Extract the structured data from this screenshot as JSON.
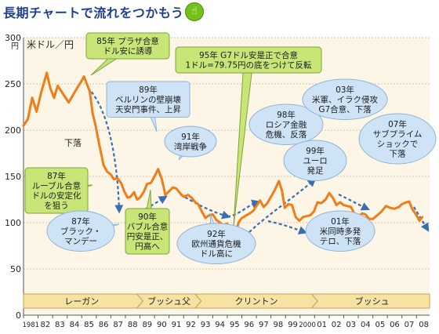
{
  "page": {
    "title": "長期チャートで流れをつかもう",
    "icon": "pointing-hand-icon"
  },
  "colors": {
    "line": "#ef7d1a",
    "arrow": "#3a6db0",
    "callout_green": "#c8e678",
    "callout_blue": "#cfe3f7",
    "era_band": "#f6e3a4",
    "plot_bg": "#fdf6e6",
    "title": "#1d3f8f"
  },
  "chart_data": {
    "type": "line",
    "unit_label": "米ドル／円",
    "ylabel": "円",
    "ylim": [
      0,
      300
    ],
    "yticks": [
      0,
      50,
      100,
      150,
      200,
      250,
      300
    ],
    "xlim": [
      1981,
      2008.9
    ],
    "xtick_labels": [
      "1981",
      "82",
      "83",
      "84",
      "85",
      "86",
      "87",
      "88",
      "89",
      "90",
      "91",
      "92",
      "93",
      "94",
      "95",
      "96",
      "97",
      "98",
      "99",
      "2000",
      "01",
      "02",
      "03",
      "04",
      "05",
      "06",
      "07",
      "08"
    ],
    "series": [
      {
        "values": [
          [
            1981.0,
            205
          ],
          [
            1981.3,
            212
          ],
          [
            1981.6,
            235
          ],
          [
            1981.9,
            220
          ],
          [
            1982.2,
            240
          ],
          [
            1982.6,
            262
          ],
          [
            1982.85,
            245
          ],
          [
            1983.1,
            235
          ],
          [
            1983.35,
            248
          ],
          [
            1983.6,
            242
          ],
          [
            1983.85,
            236
          ],
          [
            1984.1,
            230
          ],
          [
            1984.4,
            238
          ],
          [
            1984.7,
            246
          ],
          [
            1984.95,
            252
          ],
          [
            1985.15,
            258
          ],
          [
            1985.35,
            250
          ],
          [
            1985.55,
            242
          ],
          [
            1985.75,
            218
          ],
          [
            1985.95,
            205
          ],
          [
            1986.2,
            185
          ],
          [
            1986.5,
            162
          ],
          [
            1986.75,
            155
          ],
          [
            1987.0,
            152
          ],
          [
            1987.2,
            147
          ],
          [
            1987.45,
            148
          ],
          [
            1987.7,
            143
          ],
          [
            1987.95,
            133
          ],
          [
            1988.15,
            127
          ],
          [
            1988.35,
            128
          ],
          [
            1988.6,
            133
          ],
          [
            1988.8,
            125
          ],
          [
            1989.0,
            127
          ],
          [
            1989.25,
            133
          ],
          [
            1989.5,
            142
          ],
          [
            1989.75,
            143
          ],
          [
            1990.0,
            150
          ],
          [
            1990.25,
            158
          ],
          [
            1990.5,
            147
          ],
          [
            1990.75,
            130
          ],
          [
            1991.0,
            134
          ],
          [
            1991.25,
            138
          ],
          [
            1991.5,
            137
          ],
          [
            1991.75,
            132
          ],
          [
            1992.0,
            128
          ],
          [
            1992.3,
            130
          ],
          [
            1992.55,
            127
          ],
          [
            1992.8,
            122
          ],
          [
            1993.0,
            120
          ],
          [
            1993.25,
            112
          ],
          [
            1993.5,
            105
          ],
          [
            1993.75,
            108
          ],
          [
            1994.0,
            109
          ],
          [
            1994.25,
            103
          ],
          [
            1994.5,
            100
          ],
          [
            1994.75,
            97
          ],
          [
            1995.0,
            99
          ],
          [
            1995.2,
            90
          ],
          [
            1995.35,
            84
          ],
          [
            1995.55,
            88
          ],
          [
            1995.8,
            101
          ],
          [
            1996.0,
            105
          ],
          [
            1996.3,
            108
          ],
          [
            1996.55,
            110
          ],
          [
            1996.8,
            113
          ],
          [
            1997.0,
            118
          ],
          [
            1997.25,
            124
          ],
          [
            1997.5,
            117
          ],
          [
            1997.75,
            121
          ],
          [
            1998.0,
            128
          ],
          [
            1998.25,
            135
          ],
          [
            1998.55,
            145
          ],
          [
            1998.75,
            135
          ],
          [
            1998.95,
            116
          ],
          [
            1999.2,
            120
          ],
          [
            1999.45,
            119
          ],
          [
            1999.7,
            106
          ],
          [
            1999.95,
            102
          ],
          [
            2000.2,
            106
          ],
          [
            2000.45,
            107
          ],
          [
            2000.7,
            108
          ],
          [
            2000.95,
            112
          ],
          [
            2001.2,
            122
          ],
          [
            2001.45,
            121
          ],
          [
            2001.75,
            125
          ],
          [
            2002.0,
            132
          ],
          [
            2002.25,
            127
          ],
          [
            2002.5,
            119
          ],
          [
            2002.75,
            122
          ],
          [
            2003.0,
            119
          ],
          [
            2003.25,
            118
          ],
          [
            2003.5,
            117
          ],
          [
            2003.75,
            109
          ],
          [
            2004.0,
            106
          ],
          [
            2004.25,
            110
          ],
          [
            2004.5,
            109
          ],
          [
            2004.75,
            104
          ],
          [
            2005.0,
            104
          ],
          [
            2005.3,
            108
          ],
          [
            2005.6,
            112
          ],
          [
            2005.9,
            118
          ],
          [
            2006.2,
            116
          ],
          [
            2006.5,
            115
          ],
          [
            2006.8,
            117
          ],
          [
            2007.0,
            120
          ],
          [
            2007.3,
            122
          ],
          [
            2007.5,
            123
          ],
          [
            2007.7,
            115
          ],
          [
            2008.0,
            108
          ],
          [
            2008.2,
            102
          ],
          [
            2008.4,
            106
          ]
        ]
      }
    ],
    "annotations": [
      {
        "id": "a1985",
        "color": "green",
        "lines": [
          "85年 プラザ合意",
          "ドル安に誘導"
        ]
      },
      {
        "id": "a1995",
        "color": "green",
        "lines": [
          "95年 G7ドル安是正で合意",
          "1ドル=79.75円の底をつけて反転"
        ]
      },
      {
        "id": "a1989",
        "color": "blue",
        "lines": [
          "89年",
          "ベルリンの壁崩壊",
          "天安門事件、上昇"
        ]
      },
      {
        "id": "a1991",
        "color": "blue",
        "lines": [
          "91年",
          "湾岸戦争"
        ]
      },
      {
        "id": "a1998",
        "color": "blue",
        "lines": [
          "98年",
          "ロシア金融",
          "危機、反落"
        ]
      },
      {
        "id": "a1999",
        "color": "blue",
        "lines": [
          "99年",
          "ユーロ",
          "発足"
        ]
      },
      {
        "id": "a2003",
        "color": "blue",
        "lines": [
          "03年",
          "米軍、イラク侵攻",
          "G7合意、下落"
        ]
      },
      {
        "id": "a2007",
        "color": "blue",
        "lines": [
          "07年",
          "サブプライム",
          "ショックで",
          "下落"
        ]
      },
      {
        "id": "a1987a",
        "color": "green",
        "lines": [
          "87年",
          "ルーブル合意",
          "ドルの安定化",
          "を狙う"
        ]
      },
      {
        "id": "a1987b",
        "color": "blue",
        "lines": [
          "87年",
          "ブラック・",
          "マンデー"
        ]
      },
      {
        "id": "a1990",
        "color": "green",
        "lines": [
          "90年",
          "バブル合意",
          "円安是正、",
          "円高へ"
        ]
      },
      {
        "id": "a1992",
        "color": "blue",
        "lines": [
          "92年",
          "欧州通貨危機",
          "ドル高に"
        ]
      },
      {
        "id": "a2001",
        "color": "blue",
        "lines": [
          "01年",
          "米同時多発",
          "テロ、下落"
        ]
      },
      {
        "id": "a_fall",
        "color": "none",
        "lines": [
          "下落"
        ]
      }
    ],
    "eras": [
      {
        "name": "レーガン",
        "start": 1981,
        "end": 1989
      },
      {
        "name": "ブッシュ父",
        "start": 1989,
        "end": 1993
      },
      {
        "name": "クリントン",
        "start": 1993,
        "end": 2001
      },
      {
        "name": "ブッシュ",
        "start": 2001,
        "end": 2008.9
      }
    ]
  }
}
